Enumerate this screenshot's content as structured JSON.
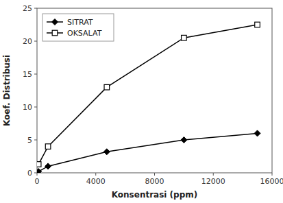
{
  "chart_data": {
    "type": "line",
    "x": [
      100,
      750,
      4750,
      10000,
      15000
    ],
    "series": [
      {
        "name": "SITRAT",
        "color": "#000000",
        "marker": "diamond",
        "values": [
          0.2,
          1.0,
          3.2,
          5.0,
          6.0
        ]
      },
      {
        "name": "OKSALAT",
        "color": "#000000",
        "marker": "square-open",
        "values": [
          1.3,
          4.0,
          13.0,
          20.5,
          22.5
        ]
      }
    ],
    "xlabel": "Konsentrasi (ppm)",
    "ylabel": "Koef. Distribusi",
    "xlim": [
      0,
      16000
    ],
    "ylim": [
      0,
      25
    ],
    "xticks": [
      0,
      4000,
      8000,
      12000,
      16000
    ],
    "yticks": [
      0,
      5,
      10,
      15,
      20,
      25
    ],
    "legend": "upper left",
    "grid": false
  }
}
